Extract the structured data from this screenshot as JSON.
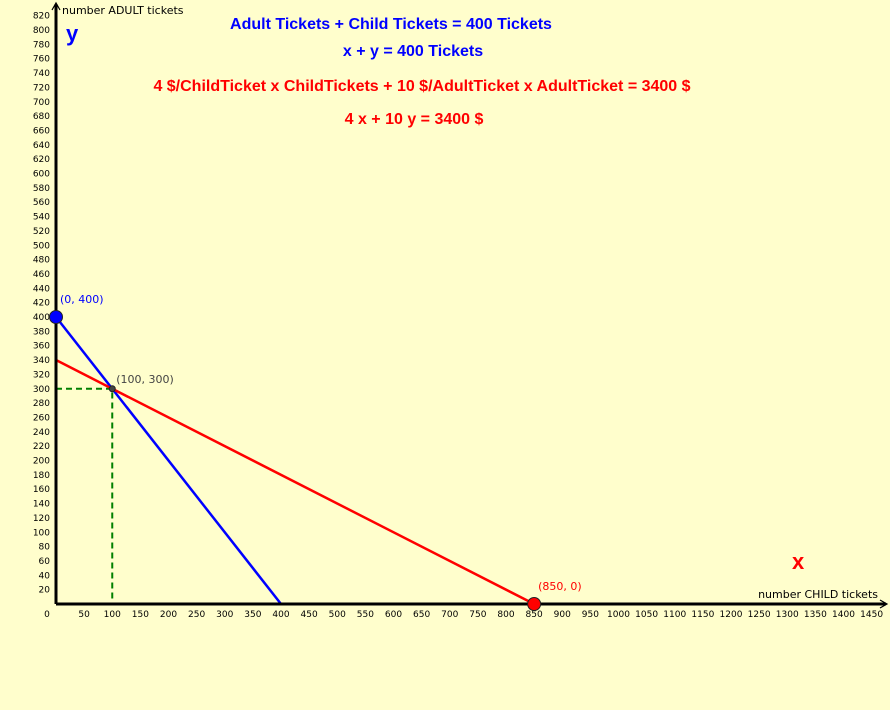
{
  "chart_data": {
    "type": "line",
    "xlabel": "number CHILD tickets",
    "ylabel": "number ADULT tickets",
    "x_letter": "x",
    "y_letter": "y",
    "xlim": [
      0,
      1470
    ],
    "ylim": [
      0,
      830
    ],
    "x_ticks": [
      0,
      50,
      100,
      150,
      200,
      250,
      300,
      350,
      400,
      450,
      500,
      550,
      600,
      650,
      700,
      750,
      800,
      850,
      900,
      950,
      1000,
      1050,
      1100,
      1150,
      1200,
      1250,
      1300,
      1350,
      1400,
      1450
    ],
    "y_ticks": [
      20,
      40,
      60,
      80,
      100,
      120,
      140,
      160,
      180,
      200,
      220,
      240,
      260,
      280,
      300,
      320,
      340,
      360,
      380,
      400,
      420,
      440,
      460,
      480,
      500,
      520,
      540,
      560,
      580,
      600,
      620,
      640,
      660,
      680,
      700,
      720,
      740,
      760,
      780,
      800,
      820
    ],
    "grid": false,
    "series": [
      {
        "points": [
          [
            0,
            400
          ],
          [
            400,
            0
          ]
        ],
        "color": "#0000ff"
      },
      {
        "points": [
          [
            0,
            340
          ],
          [
            850,
            0
          ]
        ],
        "color": "#ff0000"
      }
    ],
    "guides": [
      {
        "points": [
          [
            0,
            300
          ],
          [
            100,
            300
          ],
          [
            100,
            0
          ]
        ],
        "color": "#008000",
        "dashed": true
      }
    ],
    "points": [
      {
        "x": 0,
        "y": 400,
        "label": "(0, 400)",
        "color": "#0000ff",
        "label_color": "#0000ff",
        "size": "large"
      },
      {
        "x": 100,
        "y": 300,
        "label": "(100, 300)",
        "color": "#444444",
        "label_color": "#444444",
        "size": "small"
      },
      {
        "x": 850,
        "y": 0,
        "label": "(850, 0)",
        "color": "#ff0000",
        "label_color": "#ff0000",
        "size": "large"
      }
    ],
    "annotations": [
      {
        "text": "Adult Tickets + Child Tickets = 400 Tickets",
        "color": "#0000ff"
      },
      {
        "text": "x + y = 400 Tickets",
        "color": "#0000ff"
      },
      {
        "text": "4 $/ChildTicket x ChildTickets + 10 $/AdultTicket x AdultTicket = 3400 $",
        "color": "#ff0000"
      },
      {
        "text": "4 x + 10 y = 3400 $",
        "color": "#ff0000"
      }
    ]
  }
}
